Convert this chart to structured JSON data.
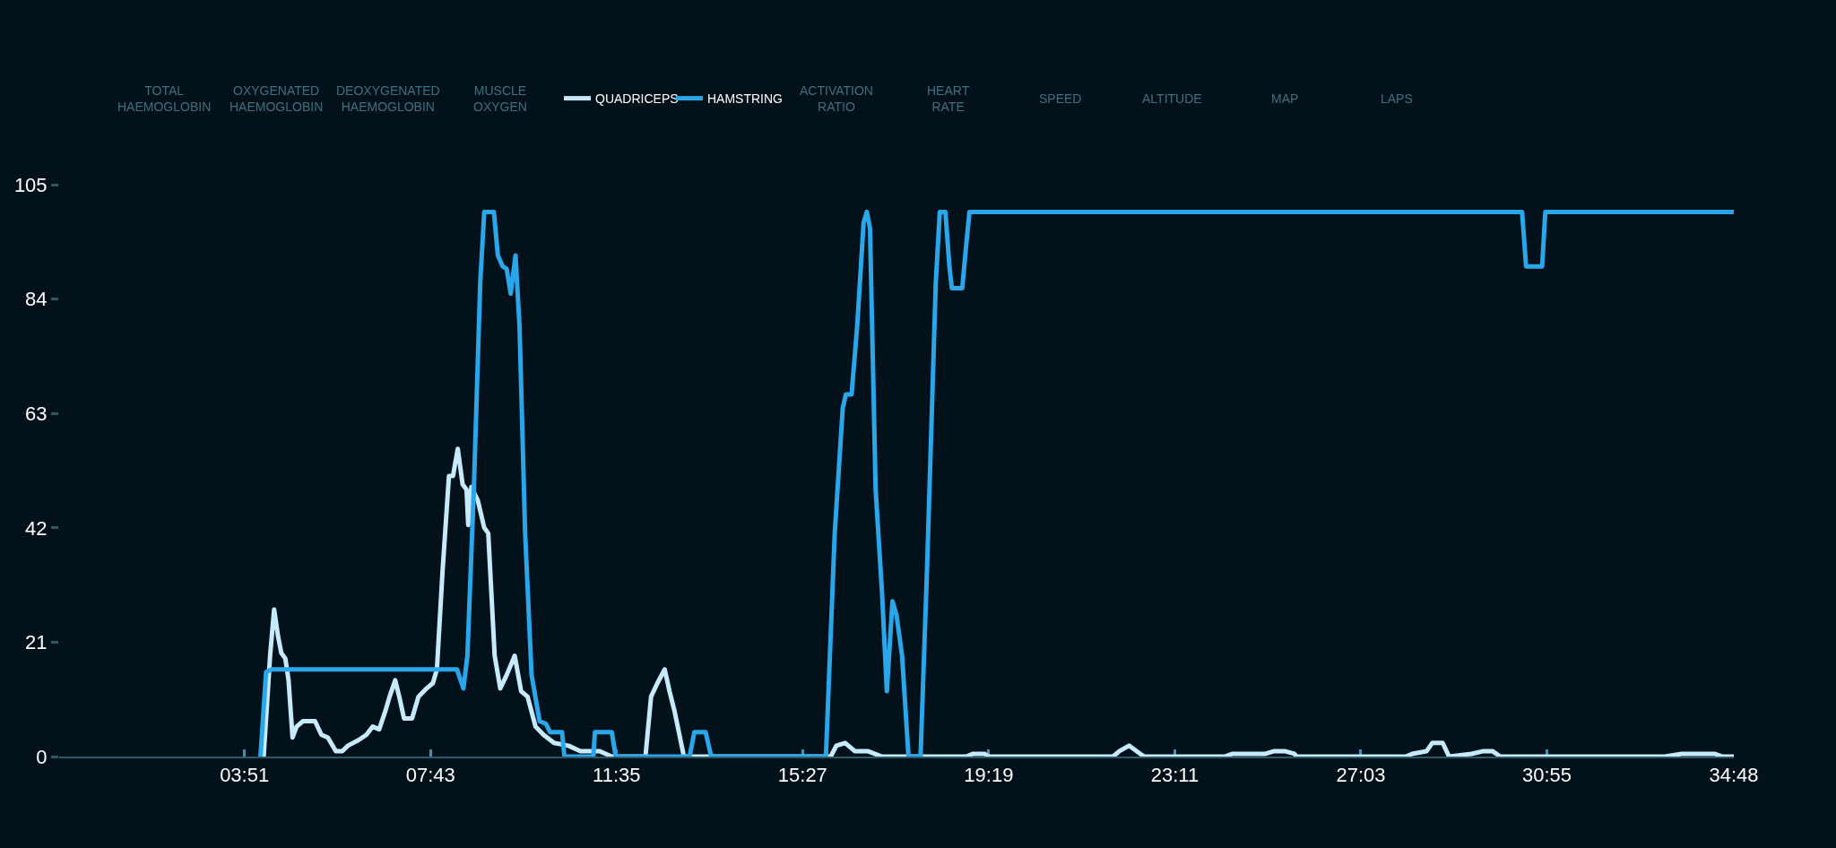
{
  "chart_data": {
    "type": "line",
    "annotations": [
      "TOTAL\nHAEMOGLOBIN",
      "OXYGENATED\nHAEMOGLOBIN",
      "DEOXYGENATED\nHAEMOGLOBIN",
      "MUSCLE\nOXYGEN",
      "ACTIVATION\nRATIO",
      "HEART\nRATE",
      "SPEED",
      "ALTITUDE",
      "MAP",
      "LAPS"
    ],
    "xlim": [
      0,
      2088
    ],
    "xticks": [
      {
        "value": 231,
        "label": "03:51"
      },
      {
        "value": 463,
        "label": "07:43"
      },
      {
        "value": 695,
        "label": "11:35"
      },
      {
        "value": 927,
        "label": "15:27"
      },
      {
        "value": 1159,
        "label": "19:19"
      },
      {
        "value": 1391,
        "label": "23:11"
      },
      {
        "value": 1623,
        "label": "27:03"
      },
      {
        "value": 1855,
        "label": "30:55"
      },
      {
        "value": 2088,
        "label": "34:48"
      }
    ],
    "ylim": [
      0,
      105
    ],
    "yticks": [
      0,
      21,
      42,
      63,
      84,
      105
    ],
    "legend": "top",
    "line_style": "solid",
    "series": [
      {
        "name": "QUADRICEPS",
        "color": "#c6eafc",
        "x": [
          255,
          263,
          268,
          273,
          277,
          282,
          286,
          291,
          296,
          304,
          319,
          327,
          335,
          345,
          353,
          360,
          373,
          383,
          391,
          399,
          407,
          412,
          419,
          424,
          430,
          440,
          448,
          458,
          466,
          471,
          478,
          486,
          491,
          497,
          503,
          508,
          510,
          514,
          522,
          530,
          535,
          543,
          550,
          558,
          568,
          576,
          584,
          594,
          604,
          617,
          635,
          650,
          674,
          689,
          731,
          738,
          746,
          755,
          761,
          767,
          779,
          962,
          969,
          980,
          992,
          1008,
          1026,
          1131,
          1139,
          1154,
          1159,
          1314,
          1322,
          1334,
          1348,
          1353,
          1453,
          1463,
          1504,
          1515,
          1528,
          1540,
          1543,
          1679,
          1687,
          1705,
          1712,
          1725,
          1733,
          1761,
          1776,
          1787,
          1797,
          2002,
          2023,
          2033,
          2048,
          2064,
          2074,
          2088
        ],
        "values": [
          0,
          18.5,
          27,
          22,
          19,
          18,
          14,
          3.5,
          5.5,
          6.5,
          6.5,
          4,
          3.5,
          1,
          1,
          2,
          3,
          4,
          5.5,
          5,
          8.5,
          11,
          14,
          11,
          7,
          7,
          11,
          12.5,
          13.5,
          16,
          34,
          51.5,
          51.5,
          56.5,
          50,
          49,
          42.5,
          49.5,
          47,
          42,
          41,
          18.5,
          12.5,
          15,
          18.5,
          12,
          11,
          5.5,
          4,
          2.5,
          2,
          1,
          1,
          0,
          0,
          11,
          13.5,
          16,
          12,
          8.5,
          0,
          0,
          2,
          2.5,
          1,
          1,
          0,
          0,
          0.5,
          0.5,
          0,
          0,
          1,
          2,
          0.5,
          0,
          0,
          0.5,
          0.5,
          1,
          1,
          0.5,
          0,
          0,
          0.5,
          1,
          2.5,
          2.5,
          0,
          0.5,
          1,
          1,
          0,
          0,
          0.5,
          0.5,
          0.5,
          0.5,
          0,
          0
        ]
      },
      {
        "name": "HAMSTRING",
        "color": "#2aa7ea",
        "x": [
          251,
          258,
          265,
          496,
          504,
          509,
          517,
          525,
          530,
          542,
          547,
          553,
          558,
          563,
          569,
          574,
          581,
          589,
          599,
          607,
          612,
          627,
          630,
          666,
          668,
          689,
          694,
          786,
          792,
          806,
          813,
          956,
          967,
          977,
          981,
          988,
          995,
          1003,
          1007,
          1011,
          1018,
          1026,
          1032,
          1039,
          1044,
          1051,
          1059,
          1074,
          1082,
          1093,
          1098,
          1105,
          1110,
          1113,
          1126,
          1131,
          1135,
          1824,
          1829,
          1833,
          1849,
          1853,
          2088
        ],
        "values": [
          0,
          15.5,
          16,
          16,
          12.5,
          18.5,
          49,
          87,
          100,
          100,
          92,
          90,
          89.5,
          85,
          92,
          79,
          41,
          15,
          6.5,
          6,
          4.5,
          4.5,
          0,
          0,
          4.5,
          4.5,
          0,
          0,
          4.5,
          4.5,
          0,
          0,
          41,
          64,
          66.5,
          66.5,
          79,
          98,
          100,
          97,
          49,
          30,
          12,
          28.5,
          26,
          18.5,
          0,
          0,
          34,
          87,
          100,
          100,
          90,
          86,
          86,
          94,
          100,
          100,
          90,
          90,
          90,
          100,
          100
        ]
      }
    ]
  }
}
